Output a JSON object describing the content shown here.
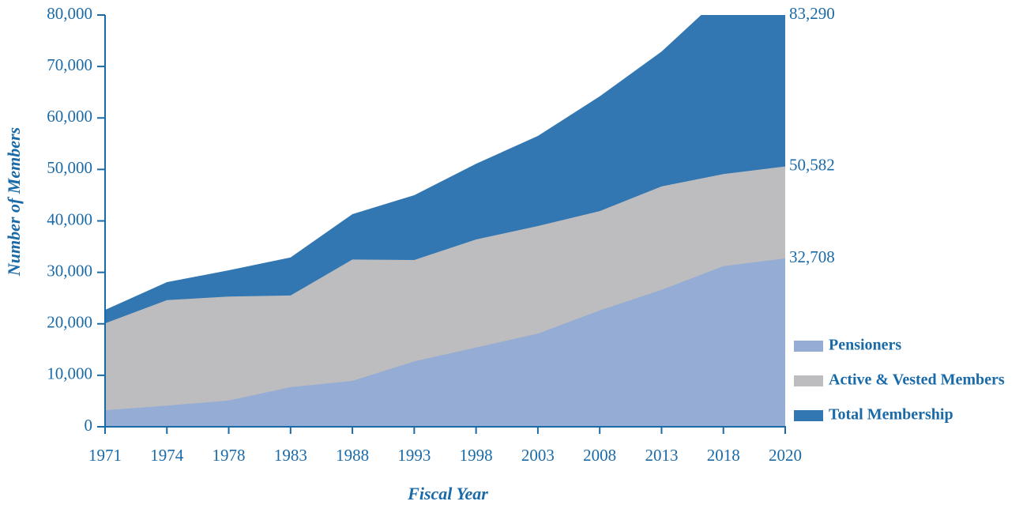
{
  "chart_data": {
    "type": "area",
    "x_label": "Fiscal Year",
    "y_label": "Number of Members",
    "categories": [
      "1971",
      "1974",
      "1978",
      "1983",
      "1988",
      "1993",
      "1998",
      "2003",
      "2008",
      "2013",
      "2018",
      "2020"
    ],
    "series": [
      {
        "name": "Pensioners",
        "color": "#95acd4",
        "values": [
          3200,
          4100,
          5100,
          7700,
          8900,
          12700,
          15400,
          18100,
          22600,
          26600,
          31200,
          32708
        ],
        "value_labels": [
          null,
          null,
          null,
          null,
          null,
          null,
          null,
          null,
          null,
          null,
          null,
          "32,708"
        ]
      },
      {
        "name": "Active & Vested Members",
        "color": "#bdbdbf",
        "values": [
          20100,
          24600,
          25300,
          25500,
          32500,
          32400,
          36400,
          39000,
          41900,
          46700,
          49100,
          50582
        ],
        "value_labels": [
          null,
          null,
          null,
          null,
          null,
          null,
          null,
          null,
          null,
          null,
          null,
          "50,582"
        ]
      },
      {
        "name": "Total Membership",
        "color": "#3277b2",
        "values": [
          22700,
          28100,
          30400,
          32900,
          41300,
          45000,
          51100,
          56500,
          64200,
          72900,
          84000,
          83290
        ],
        "value_labels": [
          null,
          null,
          null,
          null,
          null,
          null,
          null,
          null,
          null,
          null,
          null,
          "83,290"
        ]
      }
    ],
    "ylim": [
      0,
      80000
    ],
    "yticks": [
      0,
      {
        "value": 10000,
        "label": "10,000"
      },
      {
        "value": 20000,
        "label": "20,000"
      },
      {
        "value": 30000,
        "label": "30,000"
      },
      {
        "value": 40000,
        "label": "40,000"
      },
      {
        "value": 50000,
        "label": "50,000"
      },
      {
        "value": 60000,
        "label": "60,000"
      },
      {
        "value": 70000,
        "label": "70,000"
      },
      {
        "value": 80000,
        "label": "80,000"
      }
    ],
    "grid": false,
    "legend": "lower right"
  }
}
